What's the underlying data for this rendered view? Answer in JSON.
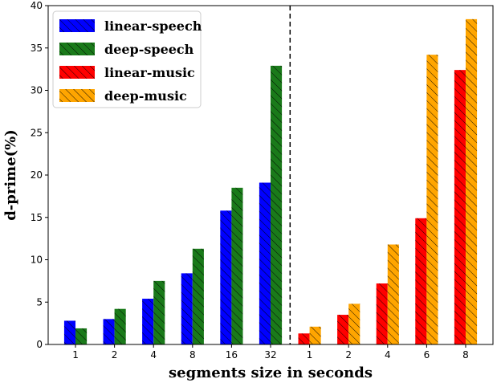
{
  "chart_data": {
    "type": "bar",
    "xlabel": "segments size in seconds",
    "ylabel": "d-prime(%)",
    "ylim": [
      0,
      40
    ],
    "yticks": [
      0,
      5,
      10,
      15,
      20,
      25,
      30,
      35,
      40
    ],
    "grid": false,
    "legend_position": "top-left",
    "groups": [
      {
        "categories": [
          "1",
          "2",
          "4",
          "8",
          "16",
          "32"
        ],
        "series": [
          {
            "name": "linear-speech",
            "color": "#0000ff",
            "values": [
              2.8,
              3.0,
              5.4,
              8.4,
              15.8,
              19.1
            ]
          },
          {
            "name": "deep-speech",
            "color": "#1a7a1a",
            "values": [
              1.9,
              4.2,
              7.5,
              11.3,
              18.5,
              32.9
            ]
          }
        ]
      },
      {
        "categories": [
          "1",
          "2",
          "4",
          "6",
          "8"
        ],
        "series": [
          {
            "name": "linear-music",
            "color": "#ff0000",
            "values": [
              1.3,
              3.5,
              7.2,
              14.9,
              32.4
            ]
          },
          {
            "name": "deep-music",
            "color": "#ffa500",
            "values": [
              2.1,
              4.8,
              11.8,
              34.2,
              38.4
            ]
          }
        ]
      }
    ],
    "legend": [
      {
        "label": "linear-speech",
        "color": "#0000ff"
      },
      {
        "label": "deep-speech",
        "color": "#1a7a1a"
      },
      {
        "label": "linear-music",
        "color": "#ff0000"
      },
      {
        "label": "deep-music",
        "color": "#ffa500"
      }
    ]
  }
}
